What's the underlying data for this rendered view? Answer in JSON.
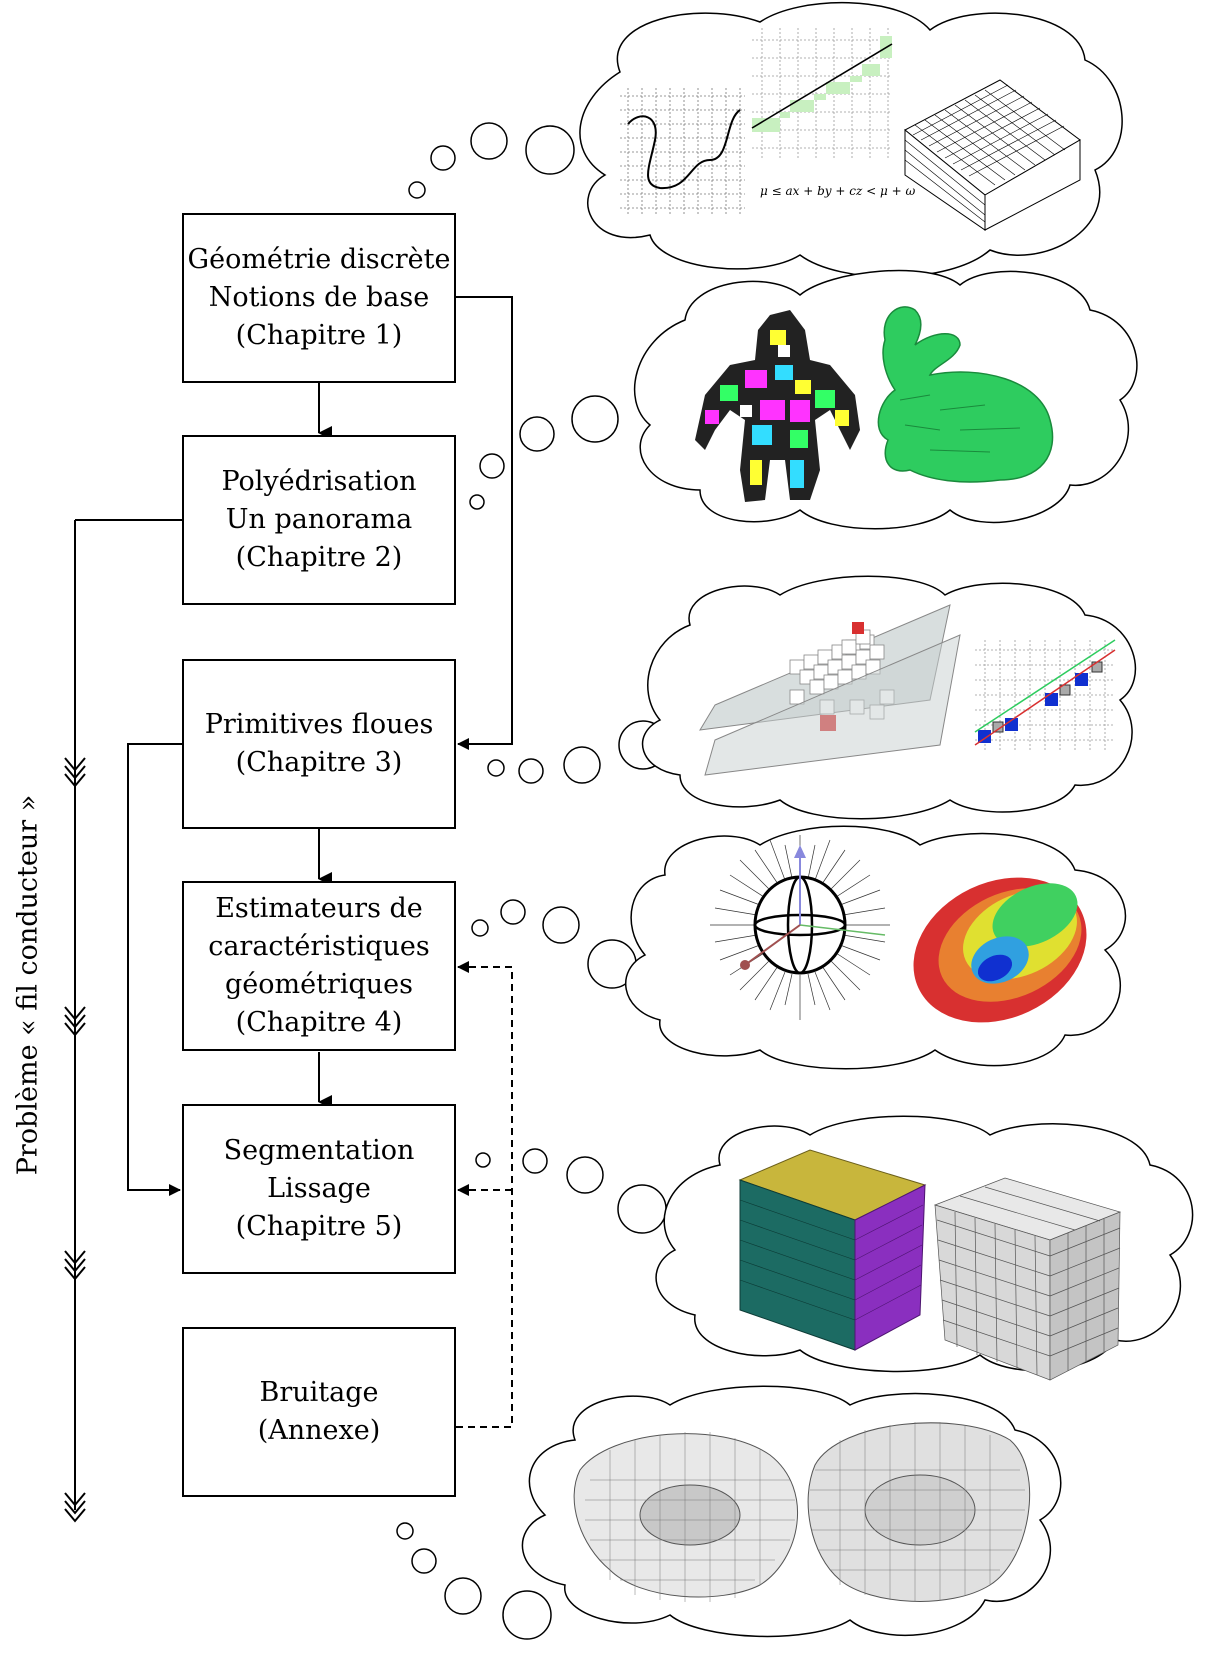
{
  "boxes": [
    {
      "lines": [
        "Géométrie discrète",
        "Notions de base",
        "(Chapitre 1)"
      ]
    },
    {
      "lines": [
        "Polyédrisation",
        "Un panorama",
        "(Chapitre 2)"
      ]
    },
    {
      "lines": [
        "Primitives floues",
        "(Chapitre 3)"
      ]
    },
    {
      "lines": [
        "Estimateurs de",
        "caractéristiques",
        "géométriques",
        "(Chapitre 4)"
      ]
    },
    {
      "lines": [
        "Segmentation",
        "Lissage",
        "(Chapitre 5)"
      ]
    },
    {
      "lines": [
        "Bruitage",
        "(Annexe)"
      ]
    }
  ],
  "side_label": "Problème « fil conducteur »",
  "cloud1": {
    "formula": "μ ≤ ax + by + cz < μ + ω"
  },
  "colors": {
    "line": "#000000",
    "green_band": "#c8f0c0",
    "bunny_green": "#2ecc5f",
    "segment_magenta": "#ff33ff",
    "segment_yellow": "#f0e020",
    "plane_gray": "#c8d0d0",
    "voxel_red": "#d83030",
    "pixel_blue": "#1030d0",
    "cube_teal": "#1c6b63",
    "cube_yellow": "#c8b63c",
    "cube_purple": "#8a2fbf",
    "voxel_gray": "#e8e8e8"
  }
}
